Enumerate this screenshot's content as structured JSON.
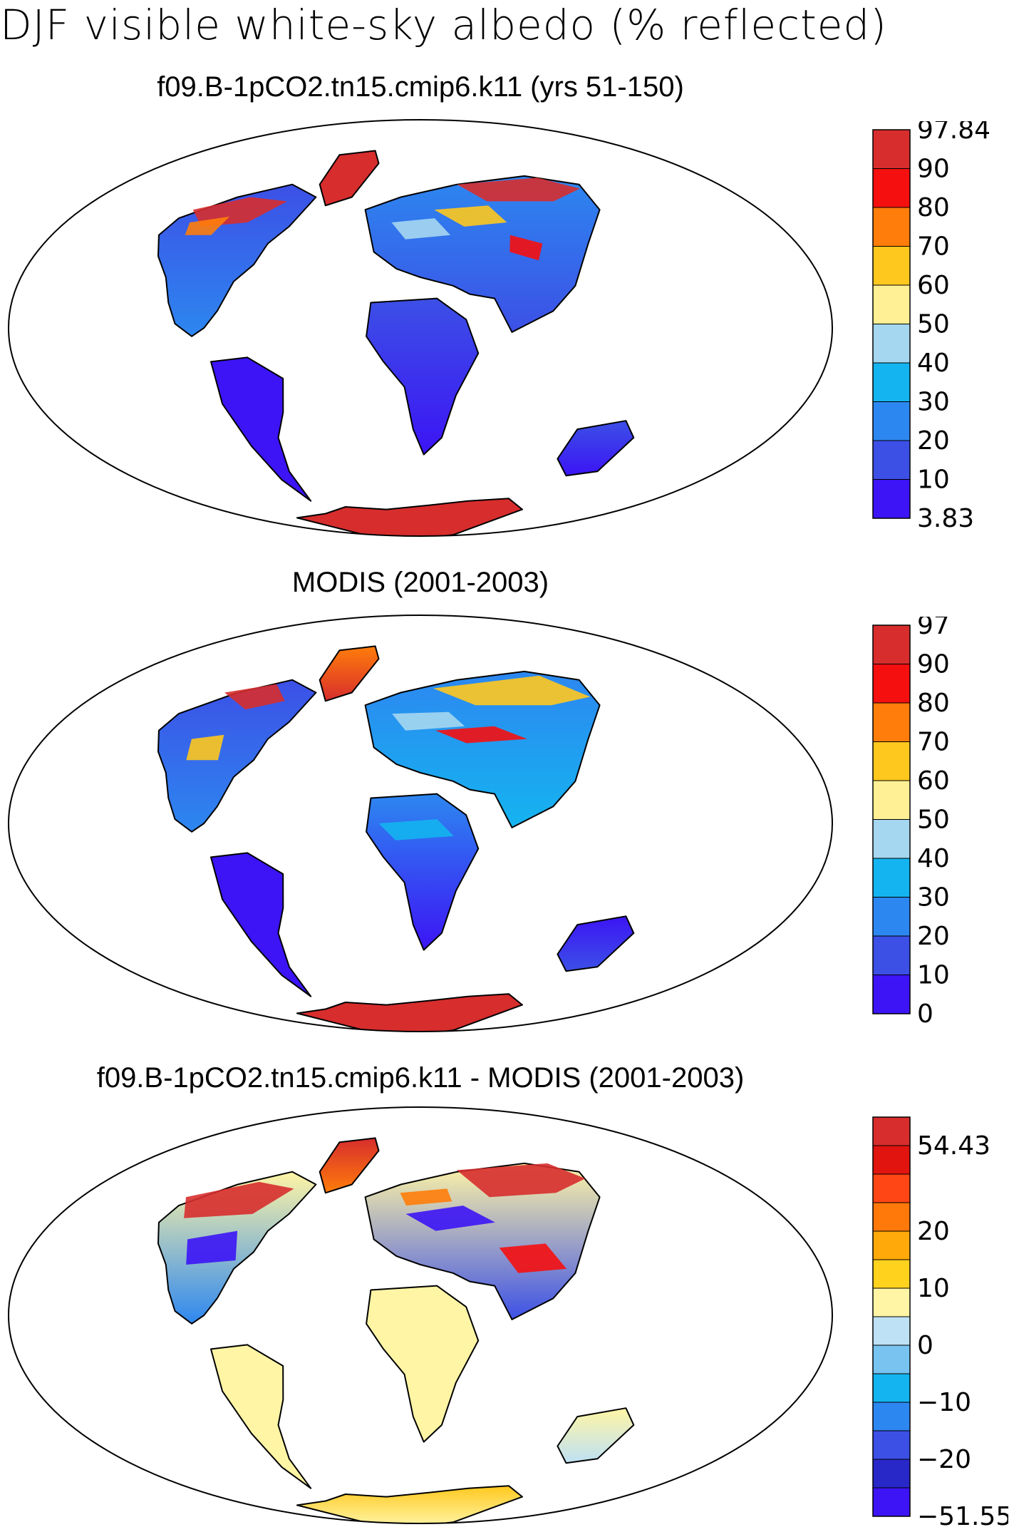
{
  "title": "DJF visible white-sky albedo (% reflected)",
  "panels": [
    {
      "id": "model",
      "title": "f09.B-1pCO2.tn15.cmip6.k11 (yrs 51-150)",
      "colorbar": {
        "colors": [
          "#3c14f5",
          "#3c50e6",
          "#2d87f0",
          "#14b4f0",
          "#a5d7f0",
          "#fff096",
          "#ffc81e",
          "#ff7d0a",
          "#f50f0f",
          "#d72d2d"
        ],
        "labels": [
          "3.83",
          "10",
          "20",
          "30",
          "40",
          "50",
          "60",
          "70",
          "80",
          "90",
          "97.84"
        ]
      }
    },
    {
      "id": "obs",
      "title": "MODIS (2001-2003)",
      "colorbar": {
        "colors": [
          "#3c14f5",
          "#3c50e6",
          "#2d87f0",
          "#14b4f0",
          "#a5d7f0",
          "#fff096",
          "#ffc81e",
          "#ff7d0a",
          "#f50f0f",
          "#d72d2d"
        ],
        "labels": [
          "0",
          "10",
          "20",
          "30",
          "40",
          "50",
          "60",
          "70",
          "80",
          "90",
          "97"
        ]
      }
    },
    {
      "id": "diff",
      "title": "f09.B-1pCO2.tn15.cmip6.k11 - MODIS (2001-2003)",
      "colorbar": {
        "colors": [
          "#3c14f5",
          "#2828c8",
          "#3c50e6",
          "#2d87f0",
          "#14b4f0",
          "#78c3f0",
          "#bee1f5",
          "#fff5a5",
          "#ffd21e",
          "#ffaa0a",
          "#ff780a",
          "#ff4614",
          "#e1140f",
          "#d72d2d"
        ],
        "labels": [
          "-51.55",
          "",
          "-20",
          "",
          "-10",
          "",
          "0",
          "",
          "10",
          "",
          "20",
          "",
          "",
          "54.43"
        ],
        "visible_labels": [
          "−51.55",
          "−20",
          "−10",
          "0",
          "10",
          "20",
          "54.43"
        ]
      }
    }
  ]
}
